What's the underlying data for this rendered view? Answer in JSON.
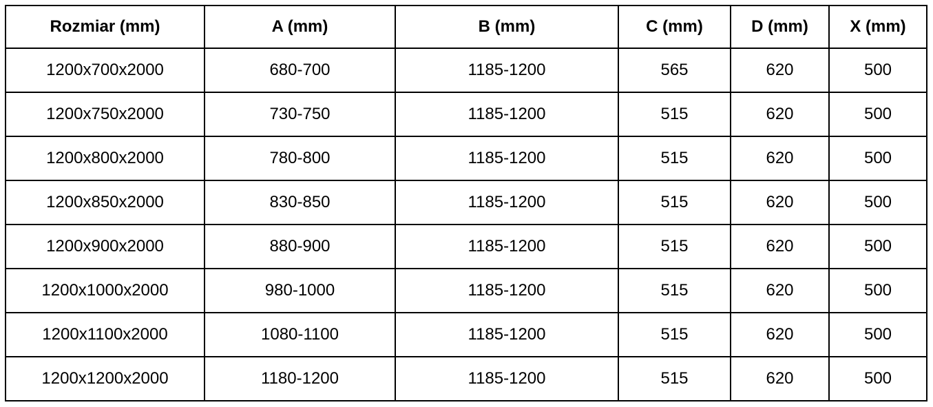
{
  "table": {
    "headers": [
      "Rozmiar (mm)",
      "A (mm)",
      "B (mm)",
      "C (mm)",
      "D (mm)",
      "X (mm)"
    ],
    "rows": [
      [
        "1200x700x2000",
        "680-700",
        "1185-1200",
        "565",
        "620",
        "500"
      ],
      [
        "1200x750x2000",
        "730-750",
        "1185-1200",
        "515",
        "620",
        "500"
      ],
      [
        "1200x800x2000",
        "780-800",
        "1185-1200",
        "515",
        "620",
        "500"
      ],
      [
        "1200x850x2000",
        "830-850",
        "1185-1200",
        "515",
        "620",
        "500"
      ],
      [
        "1200x900x2000",
        "880-900",
        "1185-1200",
        "515",
        "620",
        "500"
      ],
      [
        "1200x1000x2000",
        "980-1000",
        "1185-1200",
        "515",
        "620",
        "500"
      ],
      [
        "1200x1100x2000",
        "1080-1100",
        "1185-1200",
        "515",
        "620",
        "500"
      ],
      [
        "1200x1200x2000",
        "1180-1200",
        "1185-1200",
        "515",
        "620",
        "500"
      ]
    ]
  }
}
